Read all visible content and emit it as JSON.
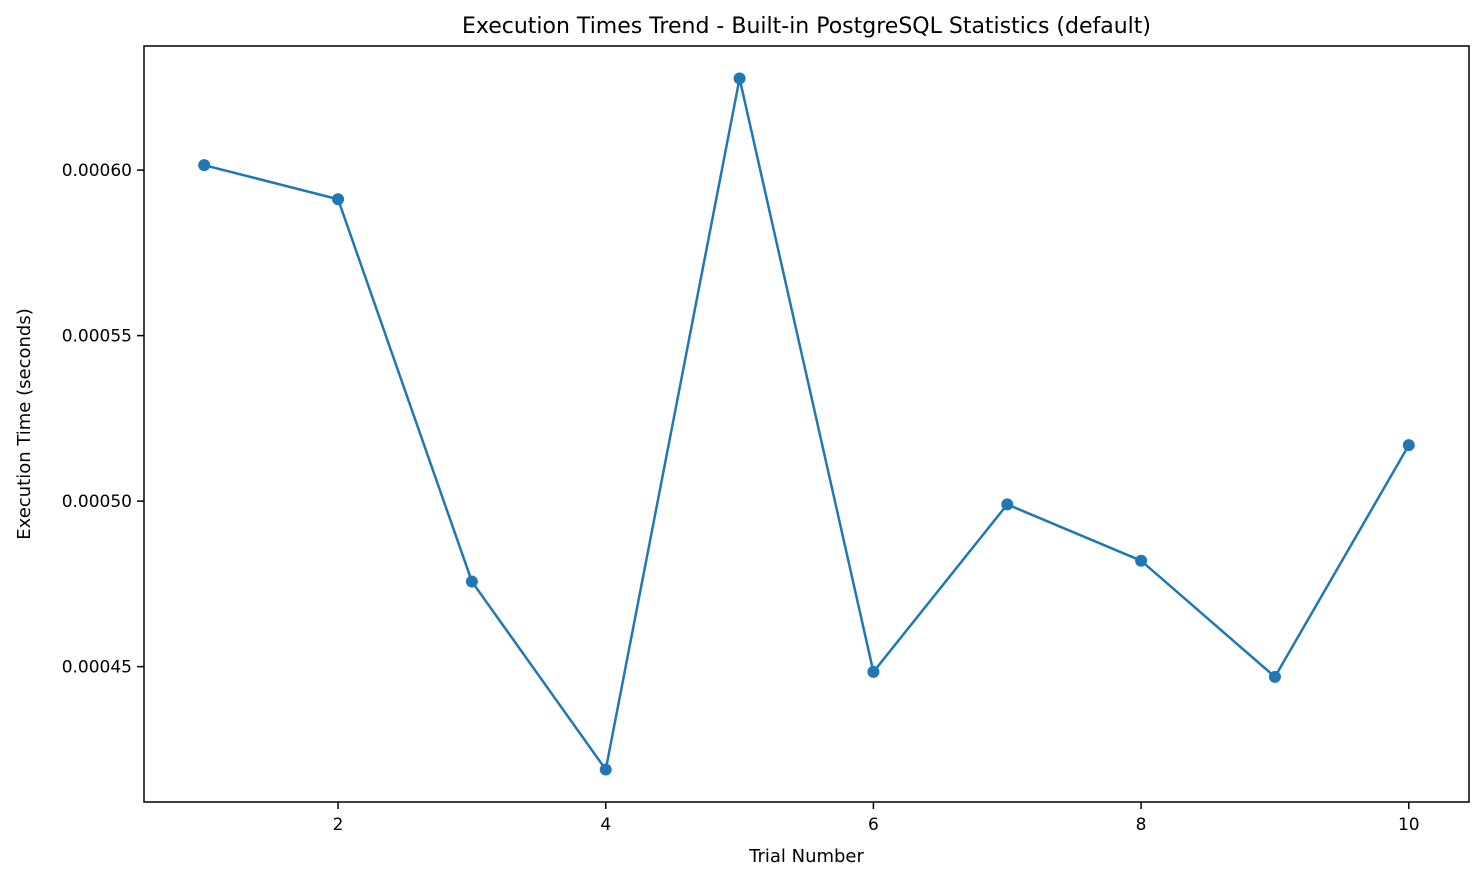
{
  "chart_data": {
    "type": "line",
    "title": "Execution Times Trend - Built-in PostgreSQL Statistics (default)",
    "xlabel": "Trial Number",
    "ylabel": "Execution Time (seconds)",
    "x": [
      1,
      2,
      3,
      4,
      5,
      6,
      7,
      8,
      9,
      10
    ],
    "series": [
      {
        "values": [
          0.0006015,
          0.0005912,
          0.0004757,
          0.0004189,
          0.0006277,
          0.0004484,
          0.000499,
          0.000482,
          0.0004469,
          0.0005169
        ],
        "color": "#1f77b4",
        "marker": "circle"
      }
    ],
    "xlim": [
      0.55,
      10.45
    ],
    "ylim": [
      0.0004091,
      0.0006375
    ],
    "xticks": [
      2,
      4,
      6,
      8,
      10
    ],
    "xtick_labels": [
      "2",
      "4",
      "6",
      "8",
      "10"
    ],
    "yticks": [
      0.00045,
      0.0005,
      0.00055,
      0.0006
    ],
    "ytick_labels": [
      "0.00045",
      "0.00050",
      "0.00055",
      "0.00060"
    ],
    "grid": false,
    "legend": "none"
  }
}
